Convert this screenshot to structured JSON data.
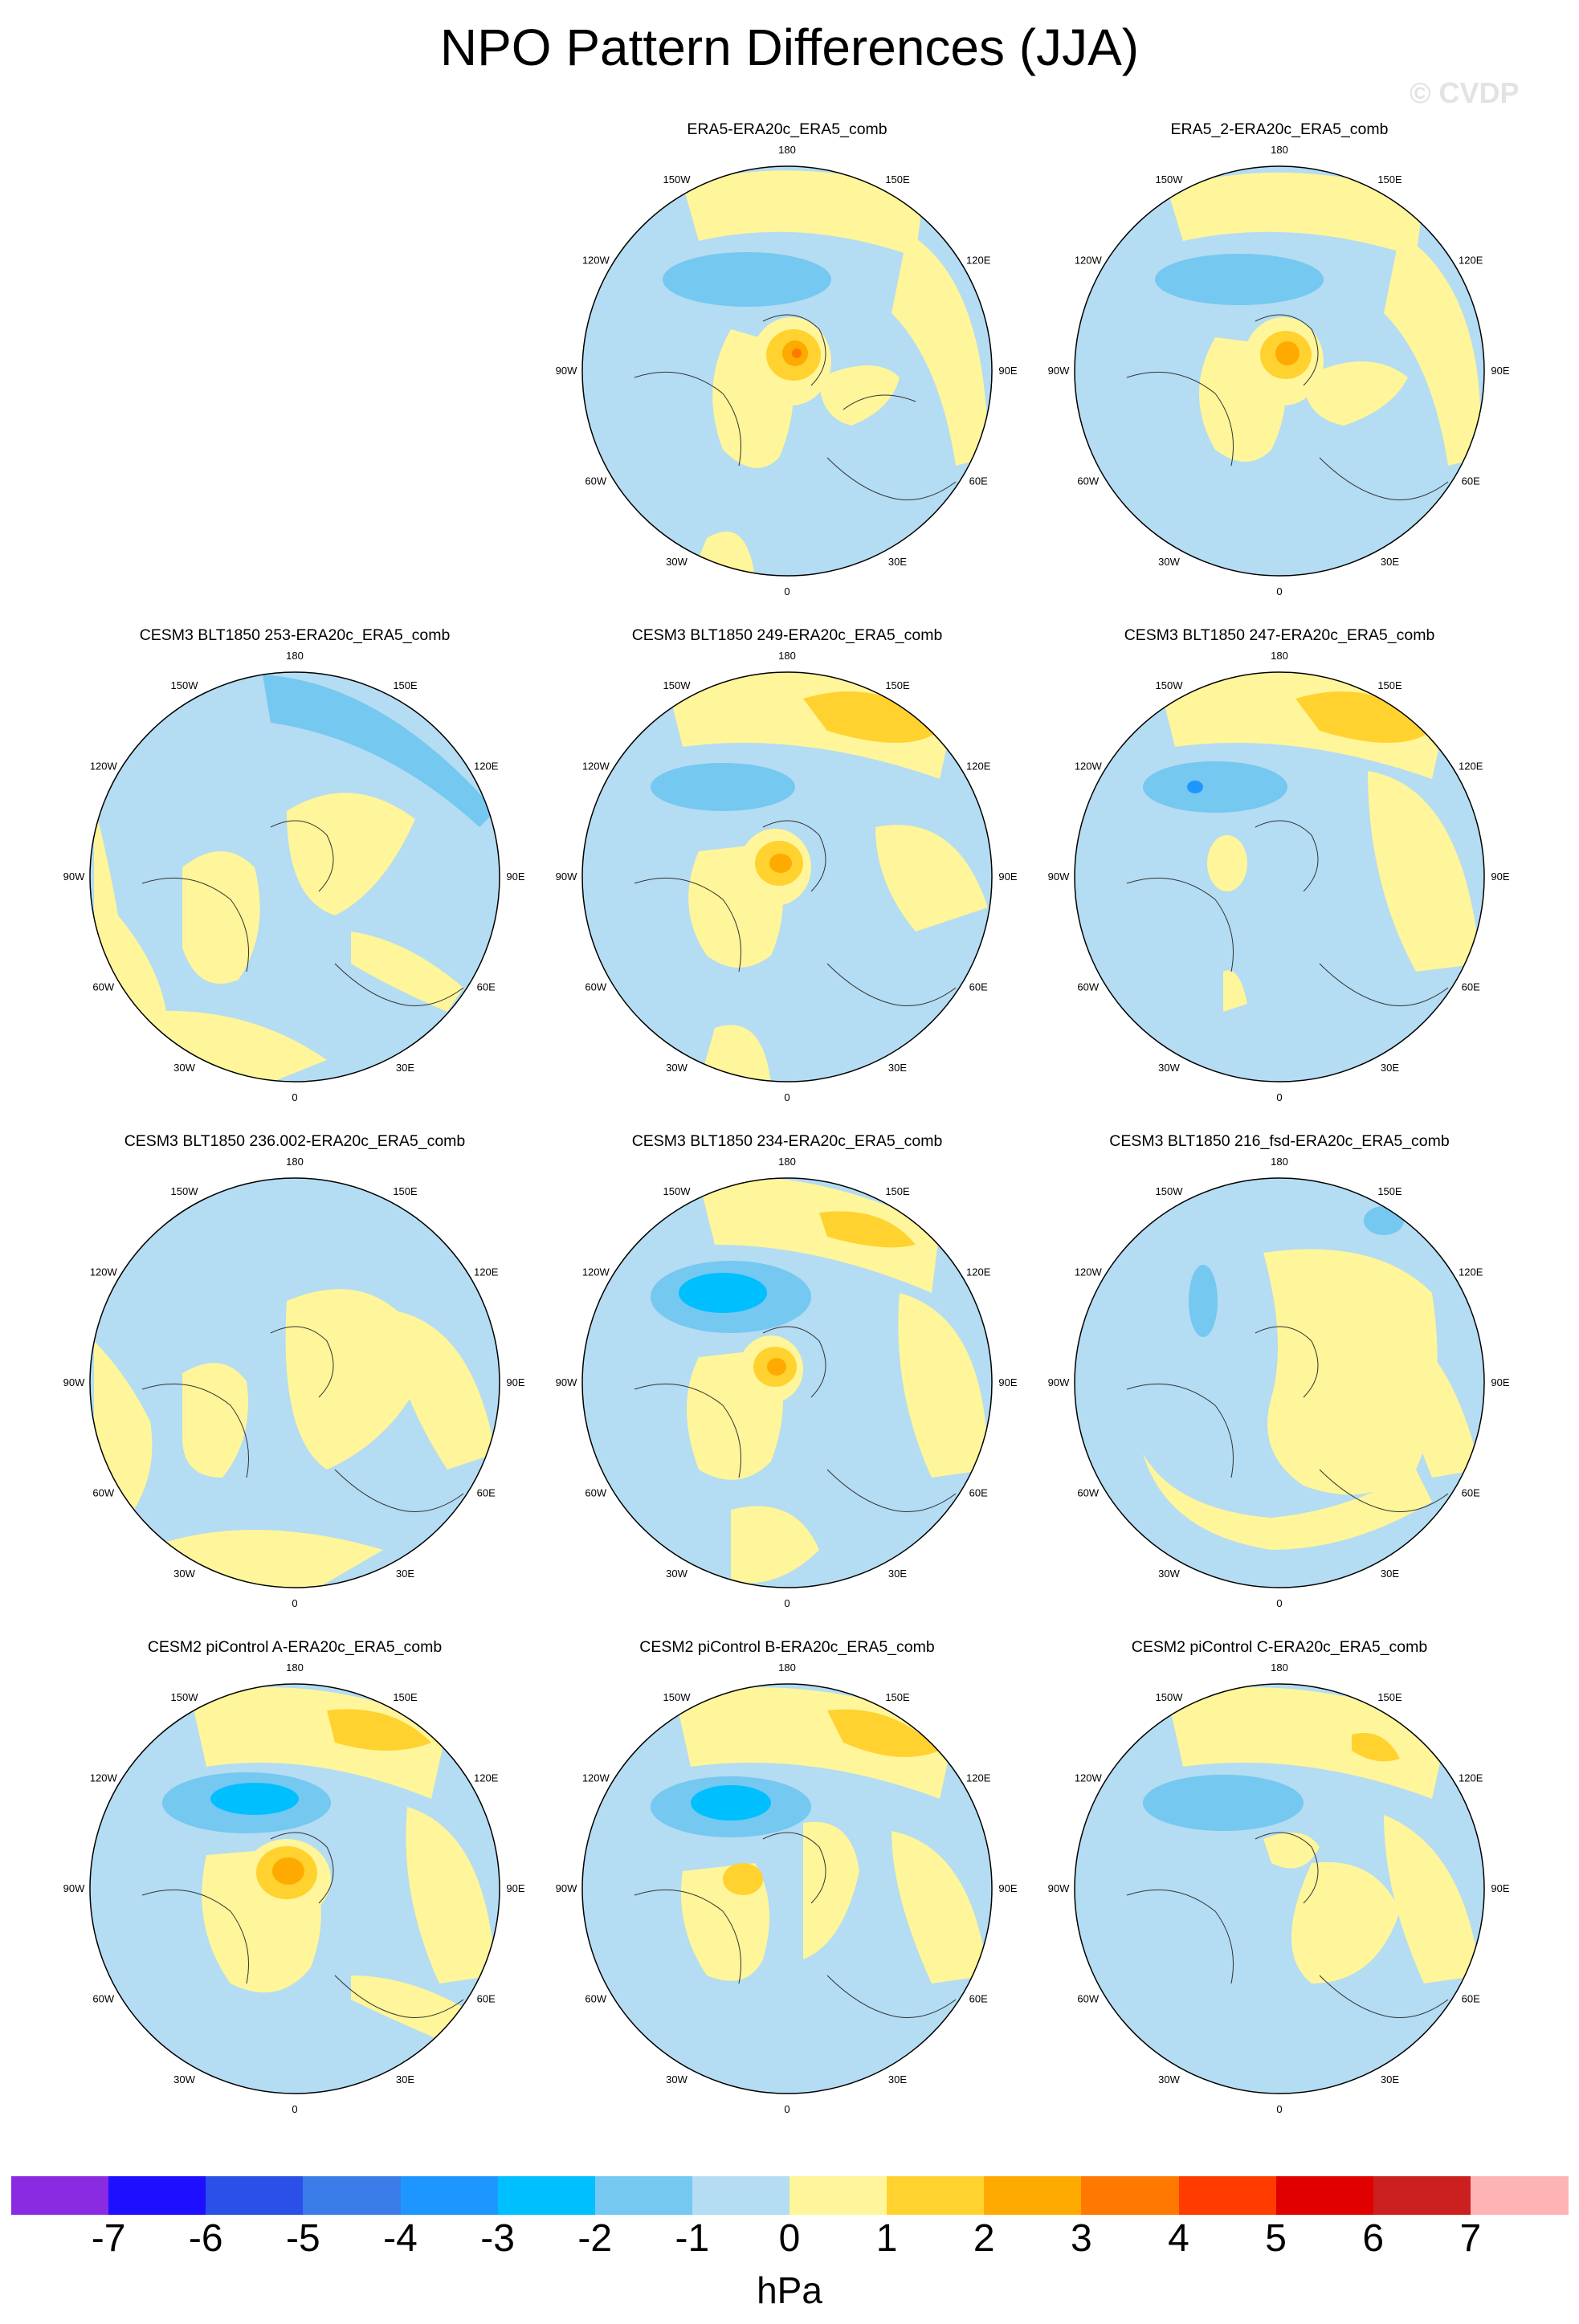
{
  "title": "NPO Pattern Differences (JJA)",
  "watermark": "© CVDP",
  "units": "hPa",
  "colorbar": {
    "ticks": [
      "-7",
      "-6",
      "-5",
      "-4",
      "-3",
      "-2",
      "-1",
      "0",
      "1",
      "2",
      "3",
      "4",
      "5",
      "6",
      "7"
    ],
    "colors": [
      "#8a2be2",
      "#1e10ff",
      "#2b50e8",
      "#3a7ce8",
      "#1e96ff",
      "#00bfff",
      "#75c8f0",
      "#b4dcf2",
      "#fff59a",
      "#ffd230",
      "#ffaa00",
      "#ff7800",
      "#ff3c00",
      "#e00000",
      "#cc2020",
      "#ffb4b4"
    ]
  },
  "lon_labels": [
    "180",
    "150E",
    "120E",
    "90E",
    "60E",
    "30E",
    "0",
    "30W",
    "60W",
    "90W",
    "120W",
    "150W"
  ],
  "panels": [
    {
      "title": "ERA5-ERA20c_ERA5_comb",
      "empty_slot": false
    },
    {
      "title": "ERA5_2-ERA20c_ERA5_comb"
    },
    {
      "title": "CESM3 BLT1850 253-ERA20c_ERA5_comb"
    },
    {
      "title": "CESM3 BLT1850 249-ERA20c_ERA5_comb"
    },
    {
      "title": "CESM3 BLT1850 247-ERA20c_ERA5_comb"
    },
    {
      "title": "CESM3 BLT1850 236.002-ERA20c_ERA5_comb"
    },
    {
      "title": "CESM3 BLT1850 234-ERA20c_ERA5_comb"
    },
    {
      "title": "CESM3 BLT1850 216_fsd-ERA20c_ERA5_comb"
    },
    {
      "title": "CESM2 piControl A-ERA20c_ERA5_comb"
    },
    {
      "title": "CESM2 piControl B-ERA20c_ERA5_comb"
    },
    {
      "title": "CESM2 piControl C-ERA20c_ERA5_comb"
    }
  ]
}
